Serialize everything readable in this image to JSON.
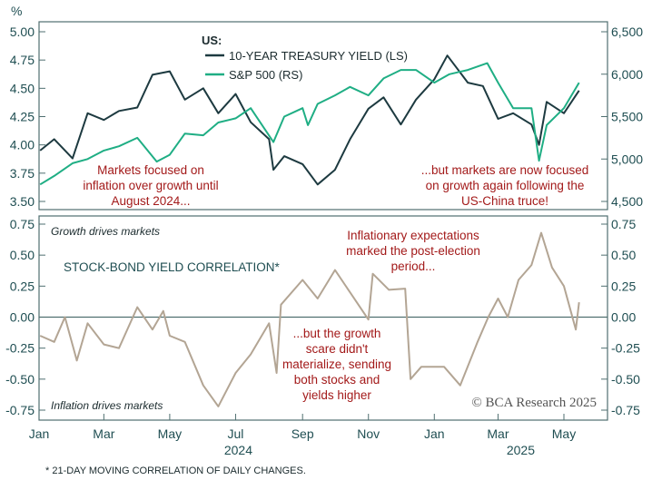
{
  "chart_data": [
    {
      "type": "line",
      "unit_label": "%",
      "legend_title": "US:",
      "left_axis": {
        "ylim": [
          3.5,
          5.0
        ],
        "ticks": [
          "5.00",
          "4.75",
          "4.50",
          "4.25",
          "4.00",
          "3.75",
          "3.50"
        ]
      },
      "right_axis": {
        "ylim": [
          4500,
          6500
        ],
        "ticks": [
          "6,500",
          "6,000",
          "5,500",
          "5,000",
          "4,500"
        ]
      },
      "legend_placement": "top-center",
      "grid": false,
      "series": [
        {
          "name": "10-YEAR TREASURY YIELD (LS)",
          "axis": "left",
          "color": "#1d3a40",
          "x": [
            "2024-01-02",
            "2024-01-15",
            "2024-02-01",
            "2024-02-15",
            "2024-03-01",
            "2024-03-15",
            "2024-04-01",
            "2024-04-15",
            "2024-05-01",
            "2024-05-15",
            "2024-06-01",
            "2024-06-15",
            "2024-07-01",
            "2024-07-15",
            "2024-08-01",
            "2024-08-05",
            "2024-08-15",
            "2024-09-01",
            "2024-09-15",
            "2024-10-01",
            "2024-10-15",
            "2024-11-01",
            "2024-11-15",
            "2024-12-01",
            "2024-12-15",
            "2025-01-01",
            "2025-01-13",
            "2025-02-01",
            "2025-02-15",
            "2025-03-01",
            "2025-03-15",
            "2025-04-01",
            "2025-04-08",
            "2025-04-15",
            "2025-05-01",
            "2025-05-15"
          ],
          "values": [
            3.95,
            4.05,
            3.88,
            4.28,
            4.22,
            4.3,
            4.33,
            4.62,
            4.65,
            4.4,
            4.5,
            4.28,
            4.45,
            4.2,
            4.05,
            3.78,
            3.9,
            3.83,
            3.65,
            3.78,
            4.05,
            4.32,
            4.42,
            4.18,
            4.4,
            4.58,
            4.79,
            4.55,
            4.52,
            4.23,
            4.28,
            4.18,
            4.0,
            4.38,
            4.28,
            4.48
          ]
        },
        {
          "name": "S&P 500 (RS)",
          "axis": "right",
          "color": "#1fae84",
          "x": [
            "2024-01-02",
            "2024-01-15",
            "2024-02-01",
            "2024-02-15",
            "2024-03-01",
            "2024-03-15",
            "2024-04-01",
            "2024-04-19",
            "2024-05-01",
            "2024-05-15",
            "2024-06-01",
            "2024-06-15",
            "2024-07-01",
            "2024-07-15",
            "2024-08-05",
            "2024-08-15",
            "2024-09-01",
            "2024-09-06",
            "2024-09-15",
            "2024-10-01",
            "2024-10-15",
            "2024-11-01",
            "2024-11-15",
            "2024-12-01",
            "2024-12-15",
            "2025-01-01",
            "2025-01-15",
            "2025-02-01",
            "2025-02-19",
            "2025-03-01",
            "2025-03-15",
            "2025-04-01",
            "2025-04-08",
            "2025-04-15",
            "2025-05-01",
            "2025-05-15"
          ],
          "values": [
            4700,
            4800,
            4950,
            5000,
            5100,
            5150,
            5250,
            4970,
            5050,
            5300,
            5280,
            5430,
            5480,
            5600,
            5200,
            5500,
            5600,
            5400,
            5650,
            5750,
            5850,
            5750,
            5950,
            6050,
            6050,
            5900,
            6000,
            6050,
            6130,
            5900,
            5600,
            5600,
            4980,
            5400,
            5600,
            5900
          ]
        }
      ],
      "annotations": [
        [
          "Markets focused on",
          "inflation over growth until",
          "August 2024..."
        ],
        [
          "...but markets are now focused",
          "on growth again following the",
          "US-China truce!"
        ]
      ]
    },
    {
      "type": "line",
      "title": "STOCK-BOND YIELD CORRELATION*",
      "ylim": [
        -0.75,
        0.75
      ],
      "ticks": [
        "0.75",
        "0.50",
        "0.25",
        "0.00",
        "-0.25",
        "-0.50",
        "-0.75"
      ],
      "x_ticks": [
        "Jan",
        "Mar",
        "May",
        "Jul",
        "Sep",
        "Nov",
        "Jan",
        "Mar",
        "May"
      ],
      "x_years": [
        "2024",
        "2025"
      ],
      "zero_line": true,
      "series": [
        {
          "color": "#b3a594",
          "x": [
            "2024-01-02",
            "2024-01-15",
            "2024-01-25",
            "2024-02-05",
            "2024-02-15",
            "2024-03-01",
            "2024-03-15",
            "2024-04-01",
            "2024-04-15",
            "2024-04-25",
            "2024-05-01",
            "2024-05-15",
            "2024-06-01",
            "2024-06-15",
            "2024-07-01",
            "2024-07-15",
            "2024-08-01",
            "2024-08-08",
            "2024-08-12",
            "2024-09-01",
            "2024-09-15",
            "2024-10-01",
            "2024-10-15",
            "2024-11-01",
            "2024-11-05",
            "2024-11-20",
            "2024-12-05",
            "2024-12-10",
            "2024-12-20",
            "2025-01-10",
            "2025-01-25",
            "2025-02-10",
            "2025-02-20",
            "2025-03-01",
            "2025-03-10",
            "2025-03-20",
            "2025-04-01",
            "2025-04-10",
            "2025-04-20",
            "2025-05-01",
            "2025-05-12",
            "2025-05-15"
          ],
          "values": [
            -0.15,
            -0.2,
            0.0,
            -0.35,
            -0.05,
            -0.22,
            -0.25,
            0.08,
            -0.1,
            0.05,
            -0.15,
            -0.2,
            -0.55,
            -0.72,
            -0.45,
            -0.3,
            -0.05,
            -0.45,
            0.1,
            0.3,
            0.15,
            0.38,
            0.2,
            -0.02,
            0.35,
            0.22,
            0.23,
            -0.5,
            -0.4,
            -0.4,
            -0.55,
            -0.2,
            0.0,
            0.15,
            0.0,
            0.3,
            0.42,
            0.68,
            0.4,
            0.25,
            -0.1,
            0.12
          ]
        }
      ],
      "labels": {
        "top": "Growth drives markets",
        "bottom": "Inflation drives markets"
      },
      "annotations": [
        [
          "Inflationary expectations",
          "marked the post-election",
          "period..."
        ],
        [
          "...but the growth",
          "scare didn't",
          "materialize, sending",
          "both stocks and",
          "yields higher"
        ]
      ]
    }
  ],
  "copyright": "© BCA Research 2025",
  "footnote": "* 21-DAY MOVING CORRELATION OF DAILY CHANGES.",
  "colors": {
    "axis_text": "#1f4e52",
    "annotation": "#a31a1a",
    "frame": "#4f6f70"
  }
}
